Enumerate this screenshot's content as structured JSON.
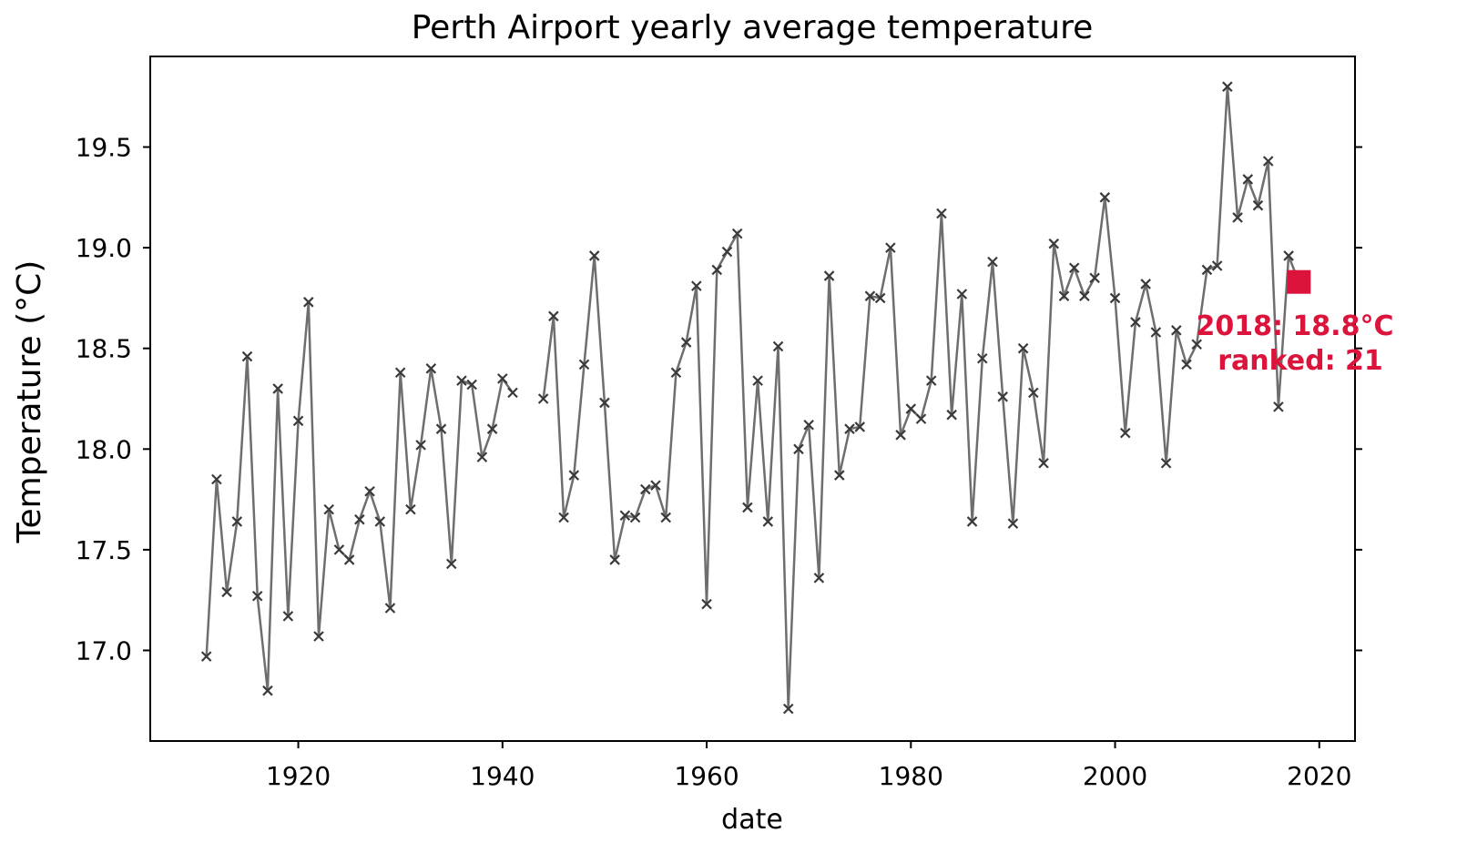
{
  "chart_data": {
    "type": "line",
    "title": "Perth Airport yearly average temperature",
    "xlabel": "date",
    "ylabel": "Temperature (°C)",
    "xlim": [
      1905.5,
      2023.5
    ],
    "ylim": [
      16.55,
      19.95
    ],
    "xticks": [
      1920,
      1940,
      1960,
      1980,
      2000,
      2020
    ],
    "xtick_labels": [
      "1920",
      "1940",
      "1960",
      "1980",
      "2000",
      "2020"
    ],
    "yticks": [
      17.0,
      17.5,
      18.0,
      18.5,
      19.0,
      19.5
    ],
    "ytick_labels": [
      "17.0",
      "17.5",
      "18.0",
      "18.5",
      "19.0",
      "19.5"
    ],
    "grid": false,
    "series_color": "#6e6e6e",
    "marker": "x",
    "series": [
      {
        "name": "yearly average",
        "segments": [
          {
            "x": [
              1911,
              1912,
              1913,
              1914,
              1915,
              1916,
              1917,
              1918,
              1919,
              1920,
              1921,
              1922,
              1923,
              1924,
              1925,
              1926,
              1927,
              1928,
              1929,
              1930,
              1931,
              1932,
              1933,
              1934,
              1935,
              1936,
              1937,
              1938,
              1939,
              1940,
              1941
            ],
            "y": [
              16.97,
              17.85,
              17.29,
              17.64,
              18.46,
              17.27,
              16.8,
              18.3,
              17.17,
              18.14,
              18.73,
              17.07,
              17.7,
              17.5,
              17.45,
              17.65,
              17.79,
              17.64,
              17.21,
              18.38,
              17.7,
              18.02,
              18.4,
              18.1,
              17.43,
              18.34,
              18.32,
              17.96,
              18.1,
              18.35,
              18.28
            ]
          },
          {
            "x": [
              1944,
              1945,
              1946,
              1947,
              1948,
              1949,
              1950,
              1951,
              1952,
              1953,
              1954,
              1955,
              1956,
              1957,
              1958,
              1959,
              1960,
              1961,
              1962,
              1963,
              1964,
              1965,
              1966,
              1967,
              1968,
              1969,
              1970,
              1971,
              1972,
              1973,
              1974,
              1975,
              1976,
              1977,
              1978,
              1979,
              1980,
              1981,
              1982,
              1983,
              1984,
              1985,
              1986,
              1987,
              1988,
              1989,
              1990,
              1991,
              1992,
              1993,
              1994,
              1995,
              1996,
              1997,
              1998,
              1999,
              2000,
              2001,
              2002,
              2003,
              2004,
              2005,
              2006,
              2007,
              2008,
              2009,
              2010,
              2011,
              2012,
              2013,
              2014,
              2015,
              2016,
              2017,
              2018
            ],
            "y": [
              18.25,
              18.66,
              17.66,
              17.87,
              18.42,
              18.96,
              18.23,
              17.45,
              17.67,
              17.66,
              17.8,
              17.82,
              17.66,
              18.38,
              18.53,
              18.81,
              17.23,
              18.89,
              18.98,
              19.07,
              17.71,
              18.34,
              17.64,
              18.51,
              16.71,
              18.0,
              18.12,
              17.36,
              18.86,
              17.87,
              18.1,
              18.11,
              18.76,
              18.75,
              19.0,
              18.07,
              18.2,
              18.15,
              18.34,
              19.17,
              18.17,
              18.77,
              17.64,
              18.45,
              18.93,
              18.26,
              17.63,
              18.5,
              18.28,
              17.93,
              19.02,
              18.76,
              18.9,
              18.76,
              18.85,
              19.25,
              18.75,
              18.08,
              18.63,
              18.82,
              18.58,
              17.93,
              18.59,
              18.42,
              18.52,
              18.89,
              18.91,
              19.8,
              19.15,
              19.34,
              19.21,
              19.43,
              18.21,
              18.96,
              18.83
            ]
          }
        ]
      }
    ],
    "highlight": {
      "x": 2018,
      "y": 18.83,
      "color": "#dc143c",
      "annotation_line1": "2018: 18.8°C",
      "annotation_line2": "ranked: 21"
    }
  }
}
